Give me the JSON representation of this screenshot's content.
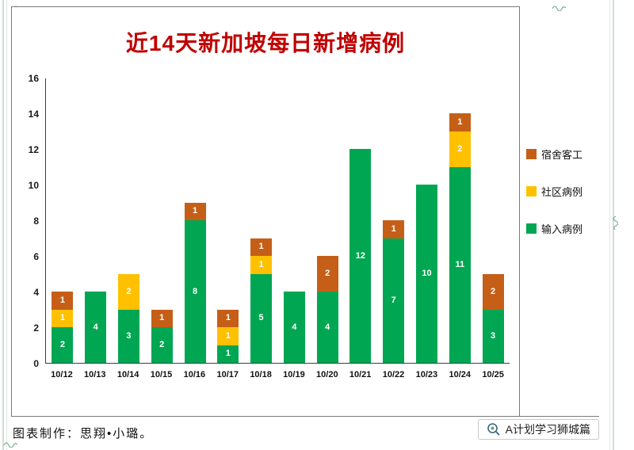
{
  "decor": {
    "edge_line_color": "#d2dcd6",
    "mark_color": "#5fa083"
  },
  "chart_data": {
    "type": "bar",
    "stacked": true,
    "title": "近14天新加坡每日新增病例",
    "title_color": "#c00000",
    "categories": [
      "10/12",
      "10/13",
      "10/14",
      "10/15",
      "10/16",
      "10/17",
      "10/18",
      "10/19",
      "10/20",
      "10/21",
      "10/22",
      "10/23",
      "10/24",
      "10/25"
    ],
    "series": [
      {
        "name": "输入病例",
        "key": "imported",
        "color": "#00a651",
        "values": [
          2,
          4,
          3,
          2,
          8,
          1,
          5,
          4,
          4,
          12,
          7,
          10,
          11,
          3
        ]
      },
      {
        "name": "社区病例",
        "key": "community",
        "color": "#ffc000",
        "values": [
          1,
          0,
          2,
          0,
          0,
          1,
          1,
          0,
          0,
          0,
          0,
          0,
          2,
          0
        ]
      },
      {
        "name": "宿舍客工",
        "key": "dorm",
        "color": "#c55f17",
        "values": [
          1,
          0,
          0,
          1,
          1,
          1,
          1,
          0,
          2,
          0,
          1,
          0,
          1,
          2
        ]
      }
    ],
    "totals": [
      4,
      4,
      5,
      3,
      9,
      3,
      7,
      4,
      6,
      12,
      8,
      10,
      14,
      5
    ],
    "ylim": [
      0,
      16
    ],
    "y_tick_step": 2,
    "grid": false,
    "legend_position": "right",
    "bar_value_labels": "white numbers inside segments"
  },
  "legend": {
    "items": [
      {
        "label": "宿舍客工",
        "color": "#c55f17"
      },
      {
        "label": "社区病例",
        "color": "#ffc000"
      },
      {
        "label": "输入病例",
        "color": "#00a651"
      }
    ]
  },
  "footer": {
    "credit": "图表制作：思翔•小璐。",
    "brand": "A计划学习狮城篇"
  }
}
